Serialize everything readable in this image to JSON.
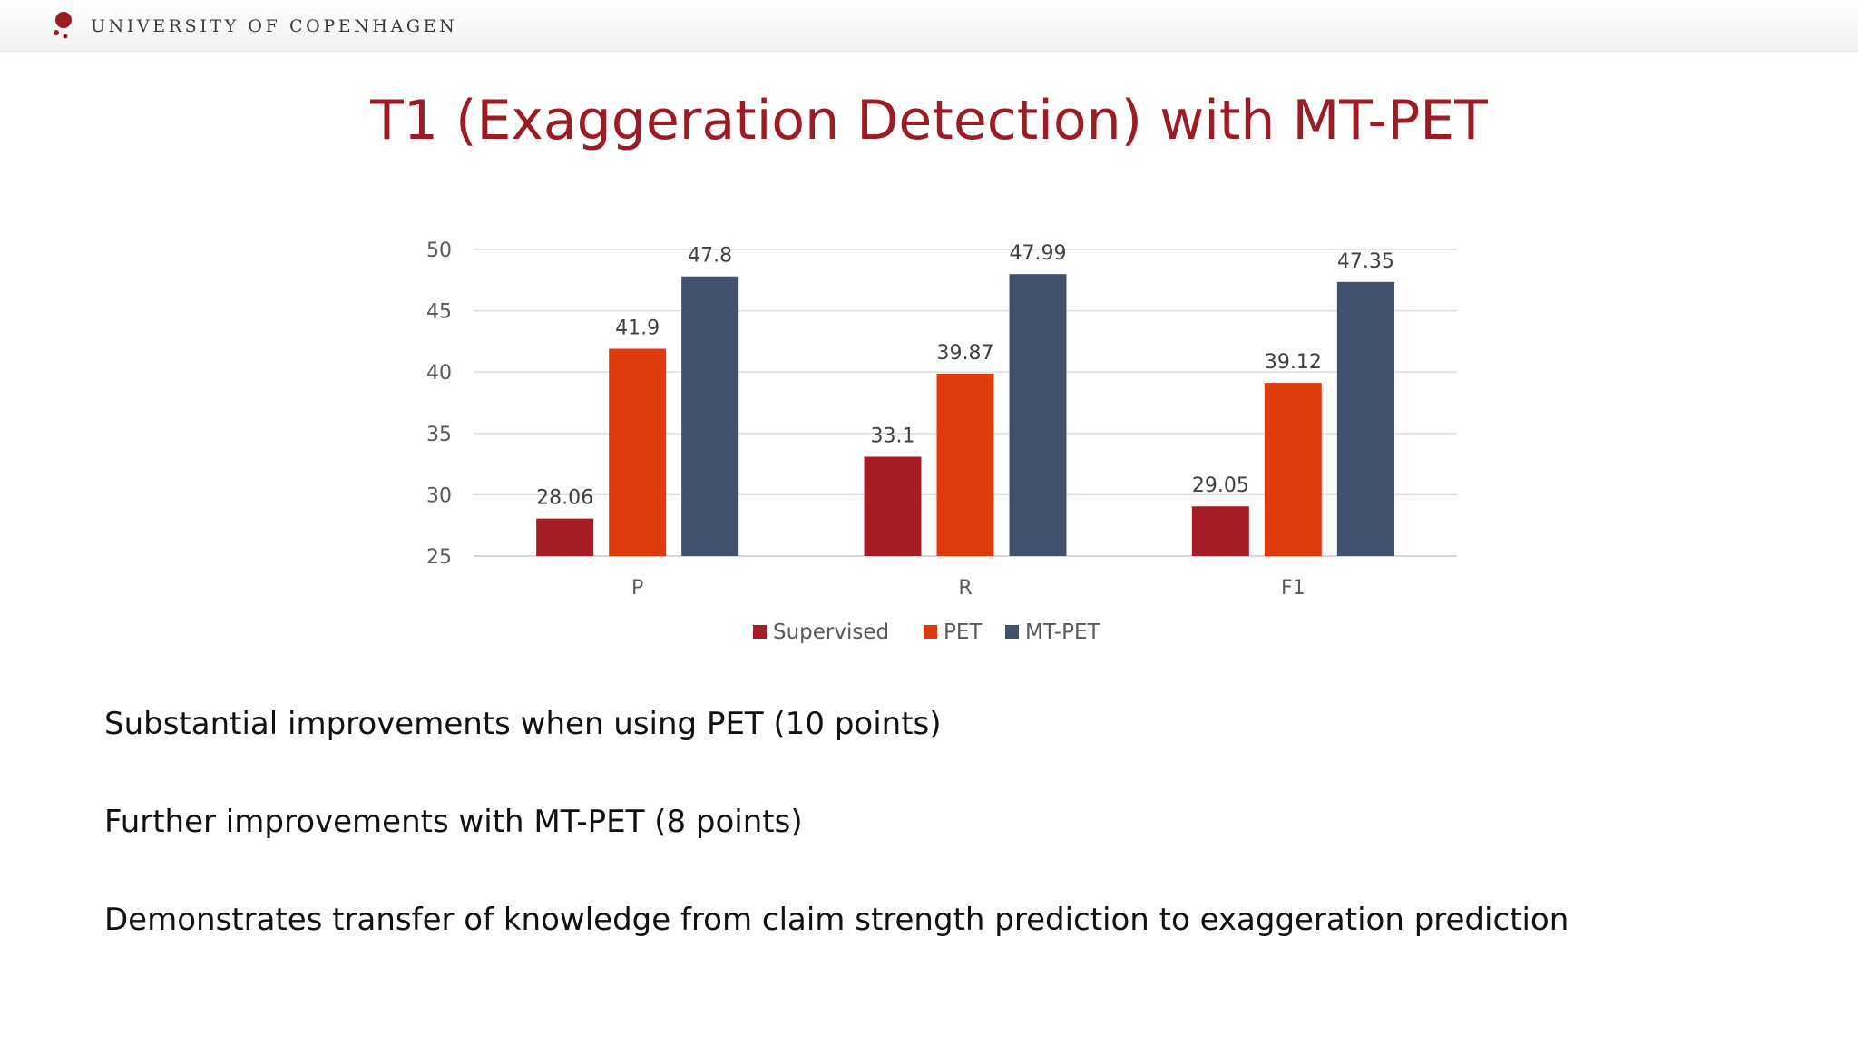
{
  "header": {
    "institution": "UNIVERSITY OF COPENHAGEN",
    "logo_icon": "university-logo-dots",
    "logo_color": "#9b1c24"
  },
  "slide": {
    "title": "T1 (Exaggeration Detection) with MT-PET",
    "title_color": "#9b1c24",
    "bullets": [
      "Substantial improvements when using PET (10 points)",
      "Further improvements with MT-PET (8 points)",
      "Demonstrates transfer of knowledge from claim strength prediction to exaggeration prediction"
    ]
  },
  "chart_data": {
    "type": "bar",
    "title": "",
    "xlabel": "",
    "ylabel": "",
    "categories": [
      "P",
      "R",
      "F1"
    ],
    "ylim": [
      25,
      50
    ],
    "yticks": [
      25,
      30,
      35,
      40,
      45,
      50
    ],
    "grid": true,
    "legend_position": "bottom-center",
    "series": [
      {
        "name": "Supervised",
        "color": "#a41d24",
        "values": [
          28.06,
          33.1,
          29.05
        ],
        "labels": [
          "28.06",
          "33.1",
          "29.05"
        ]
      },
      {
        "name": "PET",
        "color": "#de3a0b",
        "values": [
          41.9,
          39.87,
          39.12
        ],
        "labels": [
          "41.9",
          "39.87",
          "39.12"
        ]
      },
      {
        "name": "MT-PET",
        "color": "#42526e",
        "values": [
          47.8,
          47.99,
          47.35
        ],
        "labels": [
          "47.8",
          "47.99",
          "47.35"
        ]
      }
    ]
  }
}
